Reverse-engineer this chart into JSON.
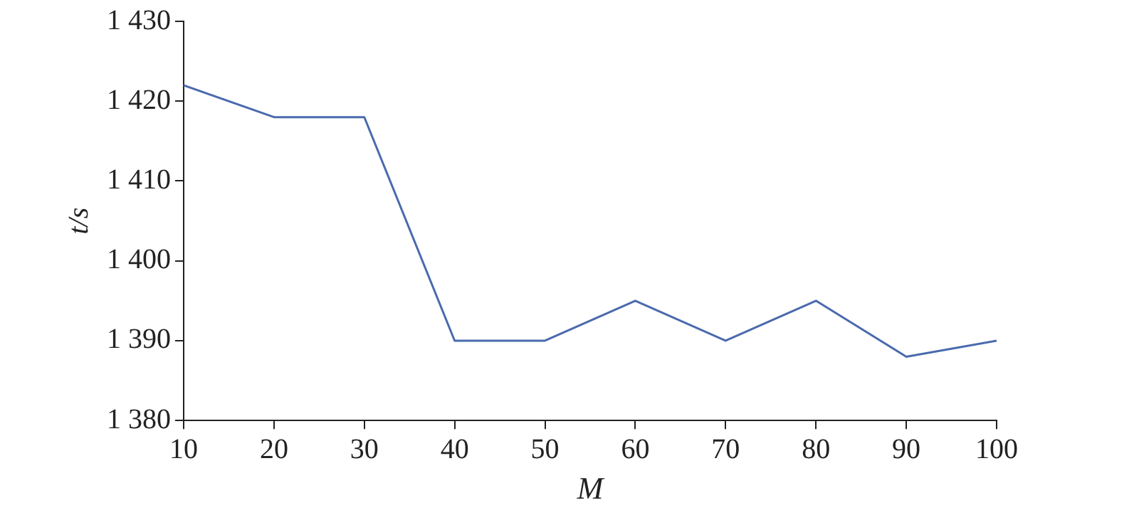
{
  "chart_data": {
    "type": "line",
    "xlabel": "M",
    "ylabel": "t/s",
    "x": [
      10,
      20,
      30,
      40,
      50,
      60,
      70,
      80,
      90,
      100
    ],
    "series": [
      {
        "color": "#4a6aad",
        "values": [
          1422,
          1418,
          1418,
          1390,
          1390,
          1395,
          1390,
          1395,
          1388,
          1390
        ]
      }
    ],
    "xlim": [
      10,
      100
    ],
    "xticks": [
      10,
      20,
      30,
      40,
      50,
      60,
      70,
      80,
      90,
      100
    ],
    "ylim": [
      1380,
      1430
    ],
    "yticks": [
      {
        "value": 1380,
        "label": "1 380"
      },
      {
        "value": 1390,
        "label": "1 390"
      },
      {
        "value": 1400,
        "label": "1 400"
      },
      {
        "value": 1410,
        "label": "1 410"
      },
      {
        "value": 1420,
        "label": "1 420"
      },
      {
        "value": 1430,
        "label": "1 430"
      }
    ],
    "grid": false,
    "legend": false,
    "marker": "none",
    "line_style": "solid"
  }
}
